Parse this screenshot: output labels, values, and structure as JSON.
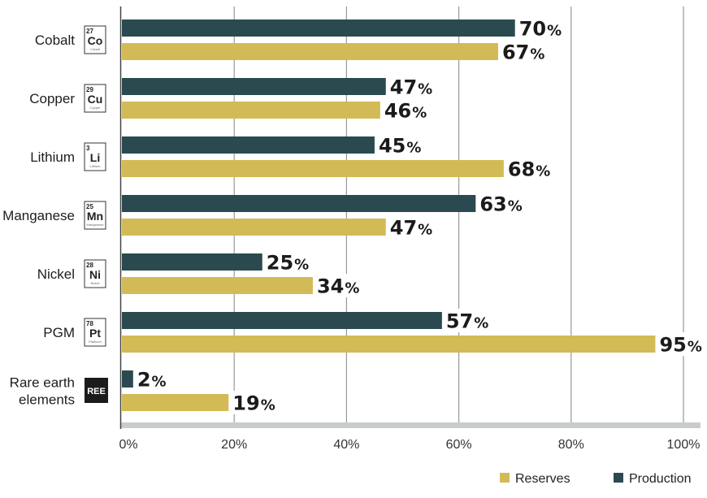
{
  "chart_data": {
    "type": "bar",
    "orientation": "horizontal",
    "categories": [
      "Cobalt",
      "Copper",
      "Lithium",
      "Manganese",
      "Nickel",
      "PGM",
      "Rare earth elements"
    ],
    "elements": [
      {
        "number": "27",
        "symbol": "Co",
        "name": "Cobalt"
      },
      {
        "number": "29",
        "symbol": "Cu",
        "name": "Copper"
      },
      {
        "number": "3",
        "symbol": "Li",
        "name": "Lithium"
      },
      {
        "number": "25",
        "symbol": "Mn",
        "name": "Manganese"
      },
      {
        "number": "28",
        "symbol": "Ni",
        "name": "Nickel"
      },
      {
        "number": "78",
        "symbol": "Pt",
        "name": "Platinum"
      },
      {
        "number": "",
        "symbol": "REE",
        "name": ""
      }
    ],
    "series": [
      {
        "name": "Production",
        "color": "#2b4a4f",
        "values": [
          70,
          47,
          45,
          63,
          25,
          57,
          2
        ]
      },
      {
        "name": "Reserves",
        "color": "#d2bb56",
        "values": [
          67,
          46,
          68,
          47,
          34,
          95,
          19
        ]
      }
    ],
    "xlim": [
      0,
      100
    ],
    "xticks": [
      "0%",
      "20%",
      "40%",
      "60%",
      "80%",
      "100%"
    ],
    "grid": true,
    "legend": {
      "placement": "bottom-right",
      "order": [
        "Reserves",
        "Production"
      ]
    },
    "value_suffix": "%"
  }
}
